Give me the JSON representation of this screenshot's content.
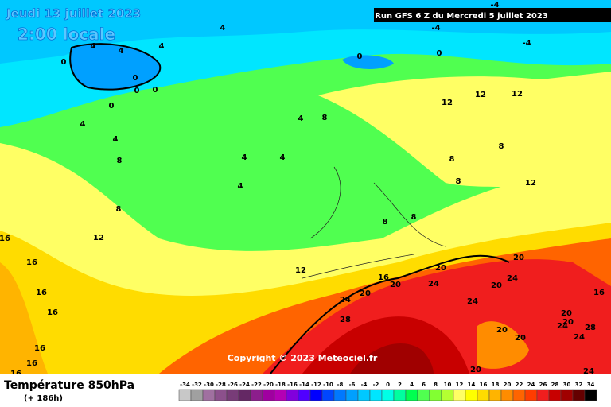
{
  "header": {
    "date": "Jeudi 13 juillet 2023",
    "time": "2:00 locale",
    "run": "Run GFS 6 Z du Mercredi 5 juillet 2023"
  },
  "copyright": "Copyright © 2023 Meteociel.fr",
  "footer": {
    "title": "Température 850hPa",
    "lead": "(+ 186h)"
  },
  "map_labels": [
    4,
    4,
    4,
    4,
    0,
    0,
    0,
    0,
    -4,
    -4,
    -4,
    0,
    0,
    0,
    4,
    4,
    8,
    4,
    4,
    4,
    4,
    8,
    8,
    8,
    12,
    12,
    12,
    12,
    8,
    8,
    12,
    8,
    8,
    16,
    16,
    16,
    16,
    16,
    16,
    12,
    16,
    20,
    24,
    24,
    20,
    20,
    20,
    24,
    20,
    28,
    24,
    20,
    20,
    24,
    20,
    24,
    28,
    20,
    20,
    24,
    16,
    16
  ],
  "colorbar": {
    "ticks": [
      -34,
      -32,
      -30,
      -28,
      -26,
      -24,
      -22,
      -20,
      -18,
      -16,
      -14,
      -12,
      -10,
      -8,
      -6,
      -4,
      -2,
      0,
      2,
      4,
      6,
      8,
      10,
      12,
      14,
      16,
      18,
      20,
      22,
      24,
      26,
      28,
      30,
      32,
      34
    ],
    "colors": [
      "#c8c8c8",
      "#a0a0a0",
      "#a070a0",
      "#8c508c",
      "#783c78",
      "#642864",
      "#8c1e8c",
      "#a000a0",
      "#b400b4",
      "#8200dc",
      "#5000ff",
      "#0000ff",
      "#0046ff",
      "#0078ff",
      "#00a0ff",
      "#00c8ff",
      "#00e6ff",
      "#00ffe6",
      "#00ffa0",
      "#00ff50",
      "#50ff50",
      "#82ff32",
      "#b4ff32",
      "#ffff64",
      "#ffff00",
      "#ffdc00",
      "#ffb400",
      "#ff8c00",
      "#ff6400",
      "#ff3c00",
      "#f01e1e",
      "#c80000",
      "#a00000",
      "#640000",
      "#000000"
    ]
  }
}
